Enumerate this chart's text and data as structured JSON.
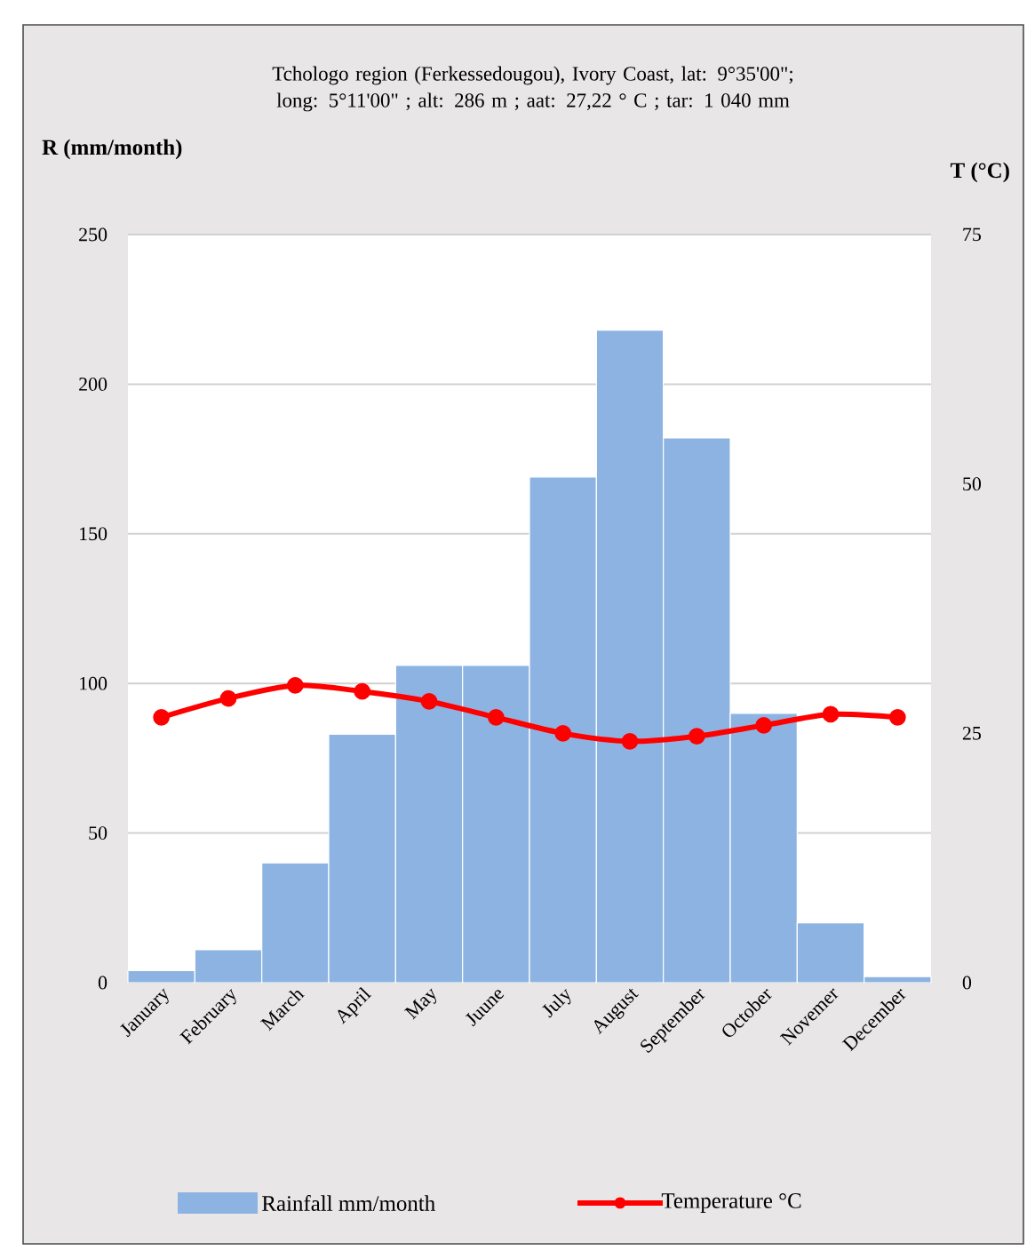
{
  "chart_data": {
    "type": "bar",
    "title": "Tchologo region (Ferkessedougou), Ivory Coast, lat: 9°35'00\";  long: 5°11'00\" ; alt: 286 m ; aat: 27,22 ° C ;  tar: 1 040 mm",
    "ylabel": "R (mm/month)",
    "y2label": "T (°C)",
    "categories": [
      "January",
      "February",
      "March",
      "April",
      "May",
      "Juune",
      "July",
      "August",
      "September",
      "October",
      "Novemer",
      "December"
    ],
    "series": [
      {
        "name": "Rainfall mm/month",
        "color": "#8db3e2",
        "values": [
          4,
          11,
          40,
          83,
          106,
          106,
          169,
          218,
          182,
          90,
          20,
          2
        ]
      },
      {
        "name": "Temperature °C",
        "type": "line",
        "axis": "y2",
        "color": "#ff0000",
        "values": [
          26.6,
          28.5,
          29.8,
          29.2,
          28.2,
          26.6,
          25.0,
          24.2,
          24.7,
          25.8,
          26.9,
          26.6
        ]
      }
    ],
    "ylim": [
      0,
      250
    ],
    "yticks": [
      0,
      50,
      100,
      150,
      200,
      250
    ],
    "y2lim": [
      0,
      75
    ],
    "y2ticks": [
      0,
      25,
      50,
      75
    ],
    "grid": "y",
    "legend": "bottom",
    "marker": "circle",
    "line_style": "solid"
  }
}
